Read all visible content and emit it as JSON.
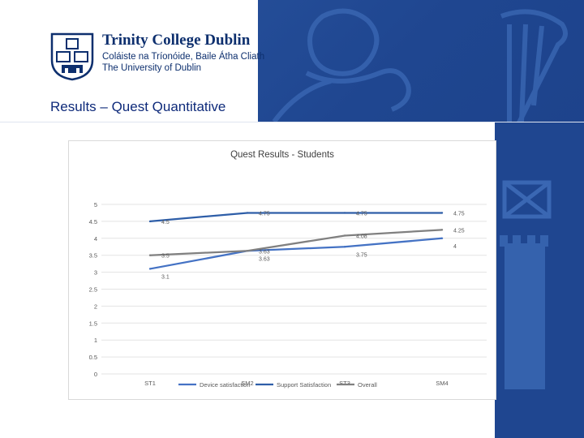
{
  "header": {
    "logo_title": "Trinity College Dublin",
    "logo_sub_irish": "Coláiste na Tríonóide, Baile Átha Cliath",
    "logo_sub_english": "The University of Dublin",
    "slide_title": "Results  – Quest Quantitative"
  },
  "icons": [
    "crest-icon",
    "lion-icon",
    "harp-icon",
    "saltire-flag-icon",
    "tower-icon"
  ],
  "colors": {
    "brand_blue": "#1f4690",
    "series_device": "#4472c4",
    "series_support": "#2e5ea8",
    "series_overall": "#808080"
  },
  "chart_data": {
    "type": "line",
    "title": "Quest Results - Students",
    "categories": [
      "ST1",
      "SM2",
      "ST3",
      "SM4"
    ],
    "ylim": [
      0,
      5
    ],
    "yticks": [
      "0",
      "0.5",
      "1",
      "1.5",
      "2",
      "2.5",
      "3",
      "3.5",
      "4",
      "4.5",
      "5"
    ],
    "grid": true,
    "legend_position": "bottom",
    "series": [
      {
        "name": "Device satisfaction",
        "values": [
          3.1,
          3.63,
          3.75,
          4
        ],
        "labels": [
          "3.1",
          "3.63",
          "3.75",
          "4"
        ]
      },
      {
        "name": "Support Satisfaction",
        "values": [
          4.5,
          4.75,
          4.75,
          4.75
        ],
        "labels": [
          "4.5",
          "4.75",
          "4.75",
          "4.75"
        ]
      },
      {
        "name": "Overall",
        "values": [
          3.5,
          3.63,
          4.08,
          4.25
        ],
        "labels": [
          "3.5",
          "3.63",
          "4.08",
          "4.25"
        ]
      }
    ]
  }
}
